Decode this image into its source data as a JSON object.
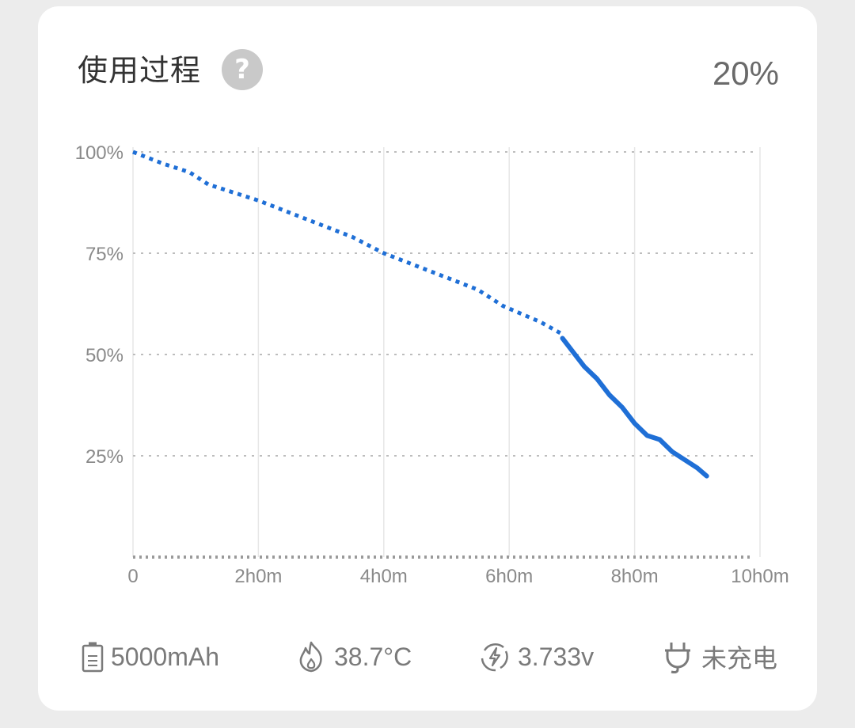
{
  "header": {
    "title": "使用过程",
    "help_label": "?",
    "current_percent": "20%"
  },
  "chart_data": {
    "type": "line",
    "xlabel": "",
    "ylabel": "",
    "x_ticks": [
      "0",
      "2h0m",
      "4h0m",
      "6h0m",
      "8h0m",
      "10h0m"
    ],
    "y_ticks": [
      "100%",
      "75%",
      "50%",
      "25%"
    ],
    "xlim": [
      0,
      10
    ],
    "ylim": [
      0,
      100
    ],
    "grid": true,
    "series": [
      {
        "segment": "dotted",
        "x_hours": [
          0,
          0.5,
          0.9,
          1.2,
          1.6,
          2.0,
          2.5,
          3.0,
          3.5,
          4.0,
          4.5,
          5.0,
          5.5,
          5.9,
          6.2,
          6.5,
          6.85
        ],
        "y_percent": [
          100,
          97,
          95,
          92,
          90,
          88,
          85,
          82,
          79,
          75,
          72,
          69,
          66,
          62,
          60,
          58,
          55
        ]
      },
      {
        "segment": "solid",
        "x_hours": [
          6.85,
          7.0,
          7.2,
          7.4,
          7.6,
          7.8,
          8.0,
          8.2,
          8.4,
          8.6,
          8.8,
          9.0,
          9.15
        ],
        "y_percent": [
          54,
          51,
          47,
          44,
          40,
          37,
          33,
          30,
          29,
          26,
          24,
          22,
          20
        ]
      }
    ]
  },
  "footer": {
    "capacity": "5000mAh",
    "temperature": "38.7°C",
    "voltage": "3.733v",
    "charge_status": "未充电"
  },
  "colors": {
    "line": "#1f6fd6",
    "grid": "#bdbdbd",
    "axis_text": "#8a8a8a"
  }
}
